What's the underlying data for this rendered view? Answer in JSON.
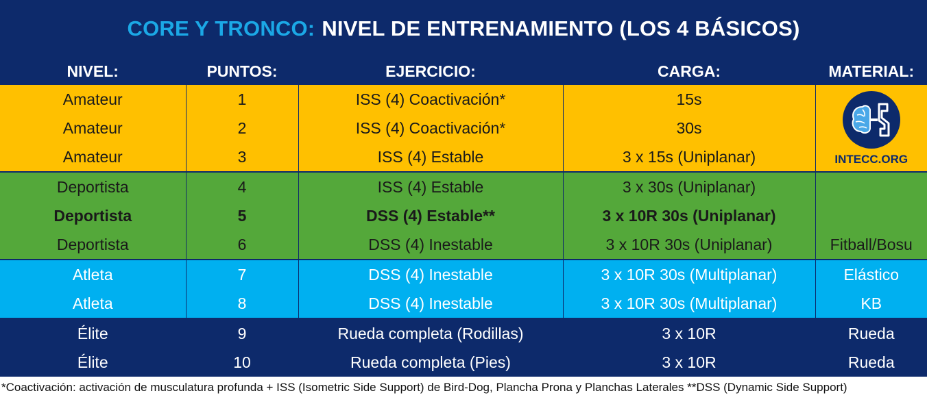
{
  "title": {
    "accent": "CORE Y TRONCO:",
    "main": "NIVEL DE ENTRENAMIENTO (LOS 4 BÁSICOS)"
  },
  "headers": [
    "NIVEL:",
    "PUNTOS:",
    "EJERCICIO:",
    "CARGA:",
    "MATERIAL:"
  ],
  "rows": [
    {
      "nivel": "Amateur",
      "puntos": "1",
      "ejercicio": "ISS (4) Coactivación*",
      "carga": "15s"
    },
    {
      "nivel": "Amateur",
      "puntos": "2",
      "ejercicio": "ISS (4) Coactivación*",
      "carga": "30s"
    },
    {
      "nivel": "Amateur",
      "puntos": "3",
      "ejercicio": "ISS (4) Estable",
      "carga": "3 x 15s (Uniplanar)"
    },
    {
      "nivel": "Deportista",
      "puntos": "4",
      "ejercicio": "ISS (4) Estable",
      "carga": "3 x 30s (Uniplanar)",
      "material": ""
    },
    {
      "nivel": "Deportista",
      "puntos": "5",
      "ejercicio": "DSS (4) Estable**",
      "carga": "3 x 10R 30s (Uniplanar)",
      "material": ""
    },
    {
      "nivel": "Deportista",
      "puntos": "6",
      "ejercicio": "DSS (4) Inestable",
      "carga": "3 x 10R 30s (Uniplanar)",
      "material": "Fitball/Bosu"
    },
    {
      "nivel": "Atleta",
      "puntos": "7",
      "ejercicio": "DSS (4) Inestable",
      "carga": "3 x 10R 30s (Multiplanar)",
      "material": "Elástico"
    },
    {
      "nivel": "Atleta",
      "puntos": "8",
      "ejercicio": "DSS (4) Inestable",
      "carga": "3 x 10R 30s (Multiplanar)",
      "material": "KB"
    },
    {
      "nivel": "Élite",
      "puntos": "9",
      "ejercicio": "Rueda completa (Rodillas)",
      "carga": "3 x 10R",
      "material": "Rueda"
    },
    {
      "nivel": "Élite",
      "puntos": "10",
      "ejercicio": "Rueda completa (Pies)",
      "carga": "3 x 10R",
      "material": "Rueda"
    }
  ],
  "logo": {
    "text": "INTECC.ORG",
    "icon": "brain-logo-icon"
  },
  "footnote": "*Coactivación: activación de musculatura profunda + ISS (Isometric Side Support) de Bird-Dog, Plancha Prona y Planchas Laterales  **DSS (Dynamic Side Support)",
  "colors": {
    "navy": "#0d2a6b",
    "accent_blue": "#1ba8e6",
    "amateur": "#ffc000",
    "deportista": "#54a83a",
    "atleta": "#00b0f0",
    "elite": "#0d2a6b"
  }
}
